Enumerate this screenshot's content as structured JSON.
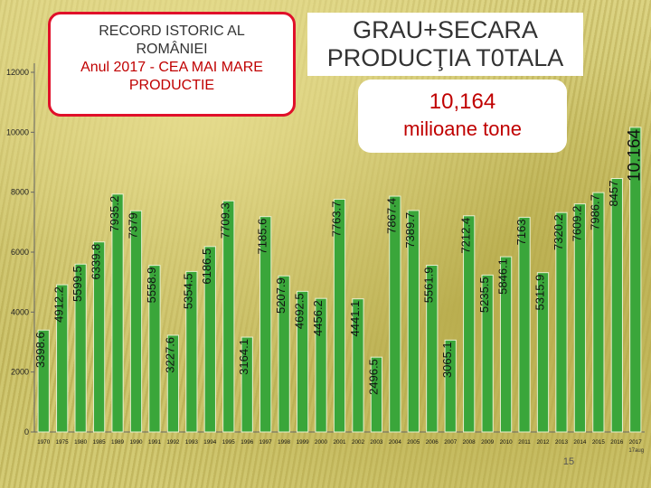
{
  "record_box": {
    "line1": "RECORD ISTORIC AL",
    "line2": "ROMÂNIEI",
    "line3": "Anul 2017 - CEA MAI MARE",
    "line4": "PRODUCTIE"
  },
  "main_title": {
    "line1": "GRAU+SECARA",
    "line2": "PRODUCŢIA T0TALA"
  },
  "total_box": {
    "value": "10,164",
    "unit": "milioane tone"
  },
  "page_number": "15",
  "chart_data": {
    "type": "bar",
    "categories": [
      "1970",
      "1975",
      "1980",
      "1985",
      "1989",
      "1990",
      "1991",
      "1992",
      "1993",
      "1994",
      "1995",
      "1996",
      "1997",
      "1998",
      "1999",
      "2000",
      "2001",
      "2002",
      "2003",
      "2004",
      "2005",
      "2006",
      "2007",
      "2008",
      "2009",
      "2010",
      "2011",
      "2012",
      "2013",
      "2014",
      "2015",
      "2016",
      "2017"
    ],
    "values": [
      3398.6,
      4912.2,
      5599.5,
      6339.8,
      7935.2,
      7379,
      5558.9,
      3227.6,
      5354.5,
      6186.5,
      7709.3,
      3164.1,
      7185.6,
      5207.9,
      4692.5,
      4456.2,
      7763.7,
      4441.1,
      2496.5,
      7867.4,
      7389.7,
      5561.9,
      3065.1,
      7212.4,
      5235.5,
      5846.1,
      7163,
      5315.9,
      7320.2,
      7609.2,
      7986.7,
      8457,
      10164
    ],
    "data_labels": [
      "3398.6",
      "4912.2",
      "5599.5",
      "6339.8",
      "7935.2",
      "7379",
      "5558.9",
      "3227.6",
      "5354.5",
      "6186.5",
      "7709.3",
      "3164.1",
      "7185.6",
      "5207.9",
      "4692.5",
      "4456.2",
      "7763.7",
      "4441.1",
      "2496.5",
      "7867.4",
      "7389.7",
      "5561.9",
      "3065.1",
      "7212.4",
      "5235.5",
      "5846.1",
      "7163",
      "5315.9",
      "7320.2",
      "7609.2",
      "7986.7",
      "8457",
      "10.164"
    ],
    "last_category_note": "17aug",
    "yticks": [
      "0",
      "2000",
      "4000",
      "6000",
      "8000",
      "10000",
      "12000"
    ],
    "ylim": [
      0,
      12000
    ],
    "bar_color": "#3aa63a",
    "grid": false,
    "legend": "none"
  }
}
